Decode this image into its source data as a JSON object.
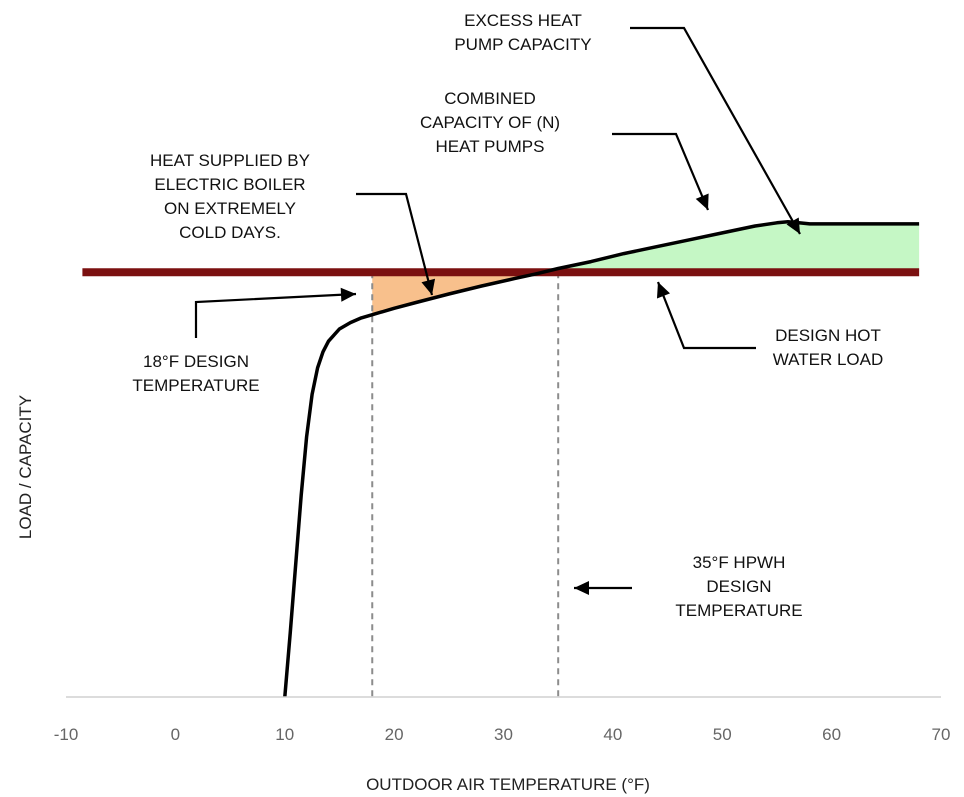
{
  "chart_data": {
    "type": "line",
    "title": "",
    "xlabel": "OUTDOOR AIR TEMPERATURE (°F)",
    "ylabel": "LOAD / CAPACITY",
    "xlim": [
      -10,
      70
    ],
    "x_ticks": [
      "-10",
      "0",
      "10",
      "20",
      "30",
      "40",
      "50",
      "60",
      "70"
    ],
    "ylim": [
      0,
      1
    ],
    "grid": false,
    "legend": "none",
    "design_load_level": 0.8,
    "design_temperature": 18,
    "hpwh_design_temperature": 35,
    "series": [
      {
        "key": "capacity",
        "x": [
          10,
          10.5,
          11,
          11.5,
          12,
          12.5,
          13,
          13.5,
          14,
          15,
          16,
          17,
          18,
          20,
          22,
          25,
          28,
          31,
          33,
          35,
          38,
          41,
          44,
          47,
          50,
          53,
          55,
          56,
          57,
          58,
          62,
          65,
          68
        ],
        "y": [
          0,
          0.12,
          0.25,
          0.38,
          0.49,
          0.57,
          0.62,
          0.65,
          0.67,
          0.693,
          0.705,
          0.714,
          0.72,
          0.732,
          0.743,
          0.759,
          0.774,
          0.788,
          0.797,
          0.807,
          0.82,
          0.835,
          0.848,
          0.861,
          0.874,
          0.887,
          0.893,
          0.895,
          0.893,
          0.891,
          0.891,
          0.891,
          0.891
        ],
        "color": "#000000"
      },
      {
        "key": "design-load",
        "x": [
          -8.5,
          68
        ],
        "y": [
          0.8,
          0.8
        ],
        "color": "#7b1010"
      }
    ],
    "shaded_regions": [
      {
        "key": "boiler",
        "between": "capacity and design-load",
        "x_range": [
          18,
          35
        ],
        "color": "#f8c08c"
      },
      {
        "key": "excess",
        "between": "capacity and design-load",
        "x_range": [
          35,
          68
        ],
        "color": "#c5f7c5"
      }
    ],
    "annotations": [
      {
        "key": "excess",
        "lines": [
          "EXCESS HEAT",
          "PUMP CAPACITY"
        ]
      },
      {
        "key": "combined",
        "lines": [
          "COMBINED",
          "CAPACITY OF (N)",
          "HEAT PUMPS"
        ]
      },
      {
        "key": "boiler",
        "lines": [
          "HEAT SUPPLIED BY",
          "ELECTRIC BOILER",
          "ON EXTREMELY",
          "COLD DAYS."
        ]
      },
      {
        "key": "design18",
        "lines": [
          "18°F DESIGN",
          "TEMPERATURE"
        ]
      },
      {
        "key": "hotwater",
        "lines": [
          "DESIGN HOT",
          "WATER LOAD"
        ]
      },
      {
        "key": "hpwh35",
        "lines": [
          "35°F HPWH",
          "DESIGN",
          "TEMPERATURE"
        ]
      }
    ]
  }
}
